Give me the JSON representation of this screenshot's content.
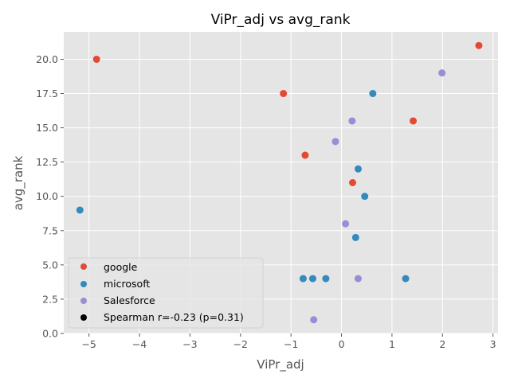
{
  "chart_data": {
    "type": "scatter",
    "title": "ViPr_adj vs avg_rank",
    "xlabel": "ViPr_adj",
    "ylabel": "avg_rank",
    "xlim": [
      -5.5,
      3.1
    ],
    "ylim": [
      0,
      22
    ],
    "x_ticks": [
      -5,
      -4,
      -3,
      -2,
      -1,
      0,
      1,
      2,
      3
    ],
    "y_ticks": [
      0.0,
      2.5,
      5.0,
      7.5,
      10.0,
      12.5,
      15.0,
      17.5,
      20.0
    ],
    "x_tick_labels": [
      "−5",
      "−4",
      "−3",
      "−2",
      "−1",
      "0",
      "1",
      "2",
      "3"
    ],
    "y_tick_labels": [
      "0.0",
      "2.5",
      "5.0",
      "7.5",
      "10.0",
      "12.5",
      "15.0",
      "17.5",
      "20.0"
    ],
    "grid": true,
    "legend_position": "bottom-left",
    "series": [
      {
        "name": "google",
        "color": "#E24A33",
        "points": [
          [
            -4.85,
            20.0
          ],
          [
            2.72,
            21.0
          ],
          [
            -1.15,
            17.5
          ],
          [
            1.42,
            15.5
          ],
          [
            -0.72,
            13.0
          ],
          [
            0.22,
            11.0
          ]
        ]
      },
      {
        "name": "microsoft",
        "color": "#348ABD",
        "points": [
          [
            0.62,
            17.5
          ],
          [
            0.33,
            12.0
          ],
          [
            0.46,
            10.0
          ],
          [
            -5.18,
            9.0
          ],
          [
            0.28,
            7.0
          ],
          [
            -0.76,
            4.0
          ],
          [
            -0.57,
            4.0
          ],
          [
            -0.31,
            4.0
          ],
          [
            1.27,
            4.0
          ]
        ]
      },
      {
        "name": "Salesforce",
        "color": "#988ED5",
        "points": [
          [
            1.99,
            19.0
          ],
          [
            0.21,
            15.5
          ],
          [
            -0.12,
            14.0
          ],
          [
            0.08,
            8.0
          ],
          [
            0.33,
            4.0
          ],
          [
            -0.55,
            1.0
          ]
        ]
      }
    ],
    "annotation": {
      "label": "Spearman r=-0.23 (p=0.31)",
      "color": "#000000"
    }
  }
}
